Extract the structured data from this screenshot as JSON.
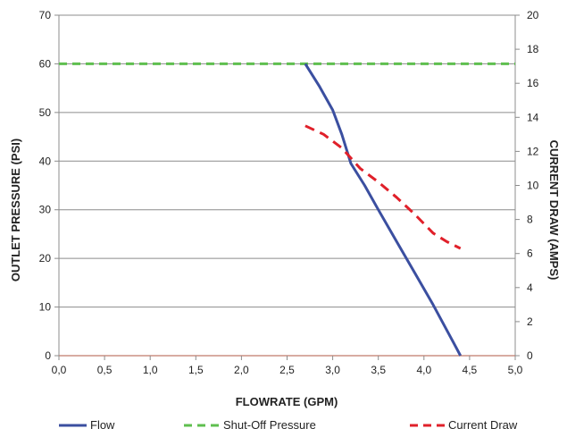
{
  "chart_data": {
    "type": "line",
    "title": "",
    "xlabel": "FLOWRATE (GPM)",
    "ylabel": "OUTLET PRESSURE (PSI)",
    "y2label": "CURRENT DRAW (AMPS)",
    "xlim": [
      0,
      5
    ],
    "ylim": [
      0,
      70
    ],
    "y2lim": [
      0,
      20
    ],
    "x_ticks": [
      "0,0",
      "0,5",
      "1,0",
      "1,5",
      "2,0",
      "2,5",
      "3,0",
      "3,5",
      "4,0",
      "4,5",
      "5,0"
    ],
    "y_ticks": [
      "0",
      "10",
      "20",
      "30",
      "40",
      "50",
      "60",
      "70"
    ],
    "y2_ticks": [
      "0",
      "2",
      "4",
      "6",
      "8",
      "10",
      "12",
      "14",
      "16",
      "18",
      "20"
    ],
    "grid": "horizontal",
    "legend_position": "bottom",
    "series": [
      {
        "name": "Flow",
        "axis": "left",
        "color": "#3b4fa0",
        "style": "solid",
        "x": [
          2.7,
          2.85,
          3.0,
          3.1,
          3.2,
          3.35,
          3.5,
          3.7,
          3.9,
          4.1,
          4.3,
          4.4
        ],
        "y": [
          60,
          55.5,
          50.5,
          45.5,
          39.5,
          35,
          30,
          23.5,
          17,
          10.5,
          3.5,
          0
        ]
      },
      {
        "name": "Shut-Off Pressure",
        "axis": "left",
        "color": "#5fbf4f",
        "style": "dashed",
        "x": [
          0,
          5
        ],
        "y": [
          60,
          60
        ]
      },
      {
        "name": "Current Draw",
        "axis": "right",
        "color": "#e0202a",
        "style": "dashed",
        "x": [
          2.7,
          2.9,
          3.1,
          3.3,
          3.5,
          3.7,
          3.9,
          4.1,
          4.25,
          4.4
        ],
        "y": [
          13.5,
          13,
          12.2,
          11,
          10.2,
          9.3,
          8.3,
          7.2,
          6.7,
          6.3
        ]
      }
    ]
  }
}
